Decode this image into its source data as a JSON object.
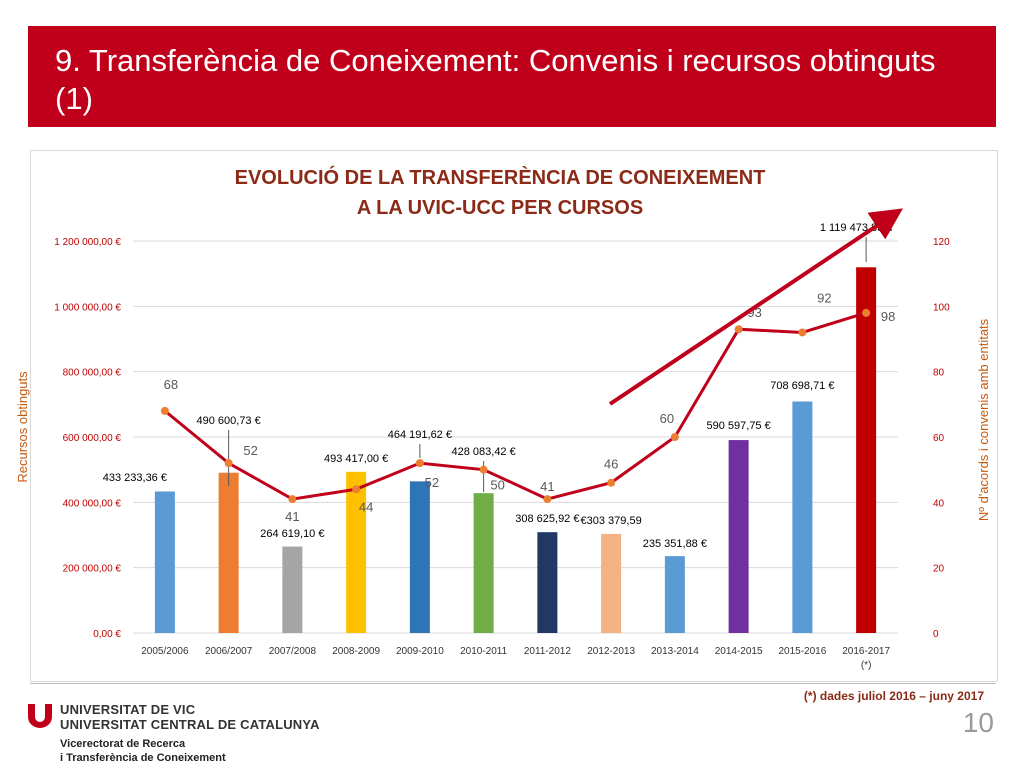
{
  "slide": {
    "title": "9. Transferència de Coneixement: Convenis i recursos obtinguts (1)",
    "footnote": "(*)  dades juliol 2016 – juny 2017",
    "university_line1": "UNIVERSITAT DE VIC",
    "university_line2": "UNIVERSITAT CENTRAL DE CATALUNYA",
    "vicerectorat_line1": "Vicerectorat de Recerca",
    "vicerectorat_line2": "i Transferència de Coneixement",
    "page_number": "10",
    "logo_color": "#c0001a"
  },
  "chart_data": {
    "type": "bar",
    "title_line1": "EVOLUCIÓ DE LA TRANSFERÈNCIA DE CONEIXEMENT",
    "title_line2": "A LA UVIC-UCC PER CURSOS",
    "ylabel": "Recursos obtinguts",
    "y2label": "Nº d'acords i convenis amb entitats",
    "ylim": [
      0,
      1200000
    ],
    "y2lim": [
      0,
      120
    ],
    "y_ticks": [
      "0,00 €",
      "200 000,00 €",
      "400 000,00 €",
      "600 000,00 €",
      "800 000,00 €",
      "1 000 000,00 €",
      "1 200 000,00 €"
    ],
    "y2_ticks": [
      "0",
      "20",
      "40",
      "60",
      "80",
      "100",
      "120"
    ],
    "categories": [
      "2005/2006",
      "2006/2007",
      "2007/2008",
      "2008-2009",
      "2009-2010",
      "2010-2011",
      "2011-2012",
      "2012-2013",
      "2013-2014",
      "2014-2015",
      "2015-2016",
      "2016-2017 (*)"
    ],
    "bar_values": [
      433233.36,
      490600.73,
      264619.1,
      493417.0,
      464191.62,
      428083.42,
      308625.92,
      303379.59,
      235351.88,
      590597.75,
      708698.71,
      1119473.83
    ],
    "bar_labels": [
      "433 233,36 €",
      "490 600,73 €",
      "264 619,10 €",
      "493 417,00 €",
      "464 191,62 €",
      "428 083,42 €",
      "308 625,92 €",
      "€303 379,59",
      "235 351,88 €",
      "590 597,75 €",
      "708 698,71 €",
      "1 119 473,83 €"
    ],
    "bar_colors": [
      "#5b9bd5",
      "#ed7d31",
      "#a5a5a5",
      "#ffc000",
      "#2e75b6",
      "#70ad47",
      "#1f3864",
      "#f4b183",
      "#5b9bd5",
      "#7030a0",
      "#5b9bd5",
      "#c00000"
    ],
    "line_values": [
      68,
      52,
      41,
      44,
      52,
      50,
      41,
      46,
      60,
      93,
      92,
      98
    ],
    "line_color": "#c0001a",
    "marker_color": "#ed7d31",
    "trend_arrow_color": "#c0001a",
    "grid": true,
    "legend": "none"
  }
}
